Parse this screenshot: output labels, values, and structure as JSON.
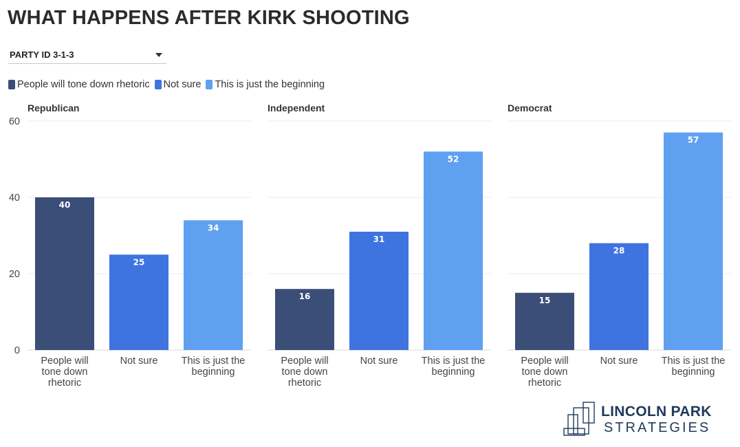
{
  "title": "WHAT HAPPENS AFTER KIRK SHOOTING",
  "filter": {
    "selected": "PARTY ID 3-1-3"
  },
  "colors": {
    "tone_down": "#3b4e77",
    "not_sure": "#3e73e0",
    "beginning": "#60a0f0",
    "grid": "#ebebeb",
    "axis_text": "#444444",
    "logo": "#1f3a5c"
  },
  "logo": {
    "line1": "LINCOLN PARK",
    "line2": "STRATEGIES"
  },
  "chart_data": {
    "type": "bar",
    "categories": [
      "People will tone down rhetoric",
      "Not sure",
      "This is just the beginning"
    ],
    "category_tick_labels": [
      [
        "People will",
        "tone down",
        "rhetoric"
      ],
      [
        "Not sure"
      ],
      [
        "This is just the",
        "beginning"
      ]
    ],
    "legend": [
      "People will tone down rhetoric",
      "Not sure",
      "This is just the beginning"
    ],
    "legend_placement": "top-left",
    "ylim": [
      0,
      60
    ],
    "yticks": [
      0,
      20,
      40,
      60
    ],
    "grid": true,
    "panels": [
      {
        "name": "Republican",
        "values": [
          40,
          25,
          34
        ]
      },
      {
        "name": "Independent",
        "values": [
          16,
          31,
          52
        ]
      },
      {
        "name": "Democrat",
        "values": [
          15,
          28,
          57
        ]
      }
    ]
  }
}
